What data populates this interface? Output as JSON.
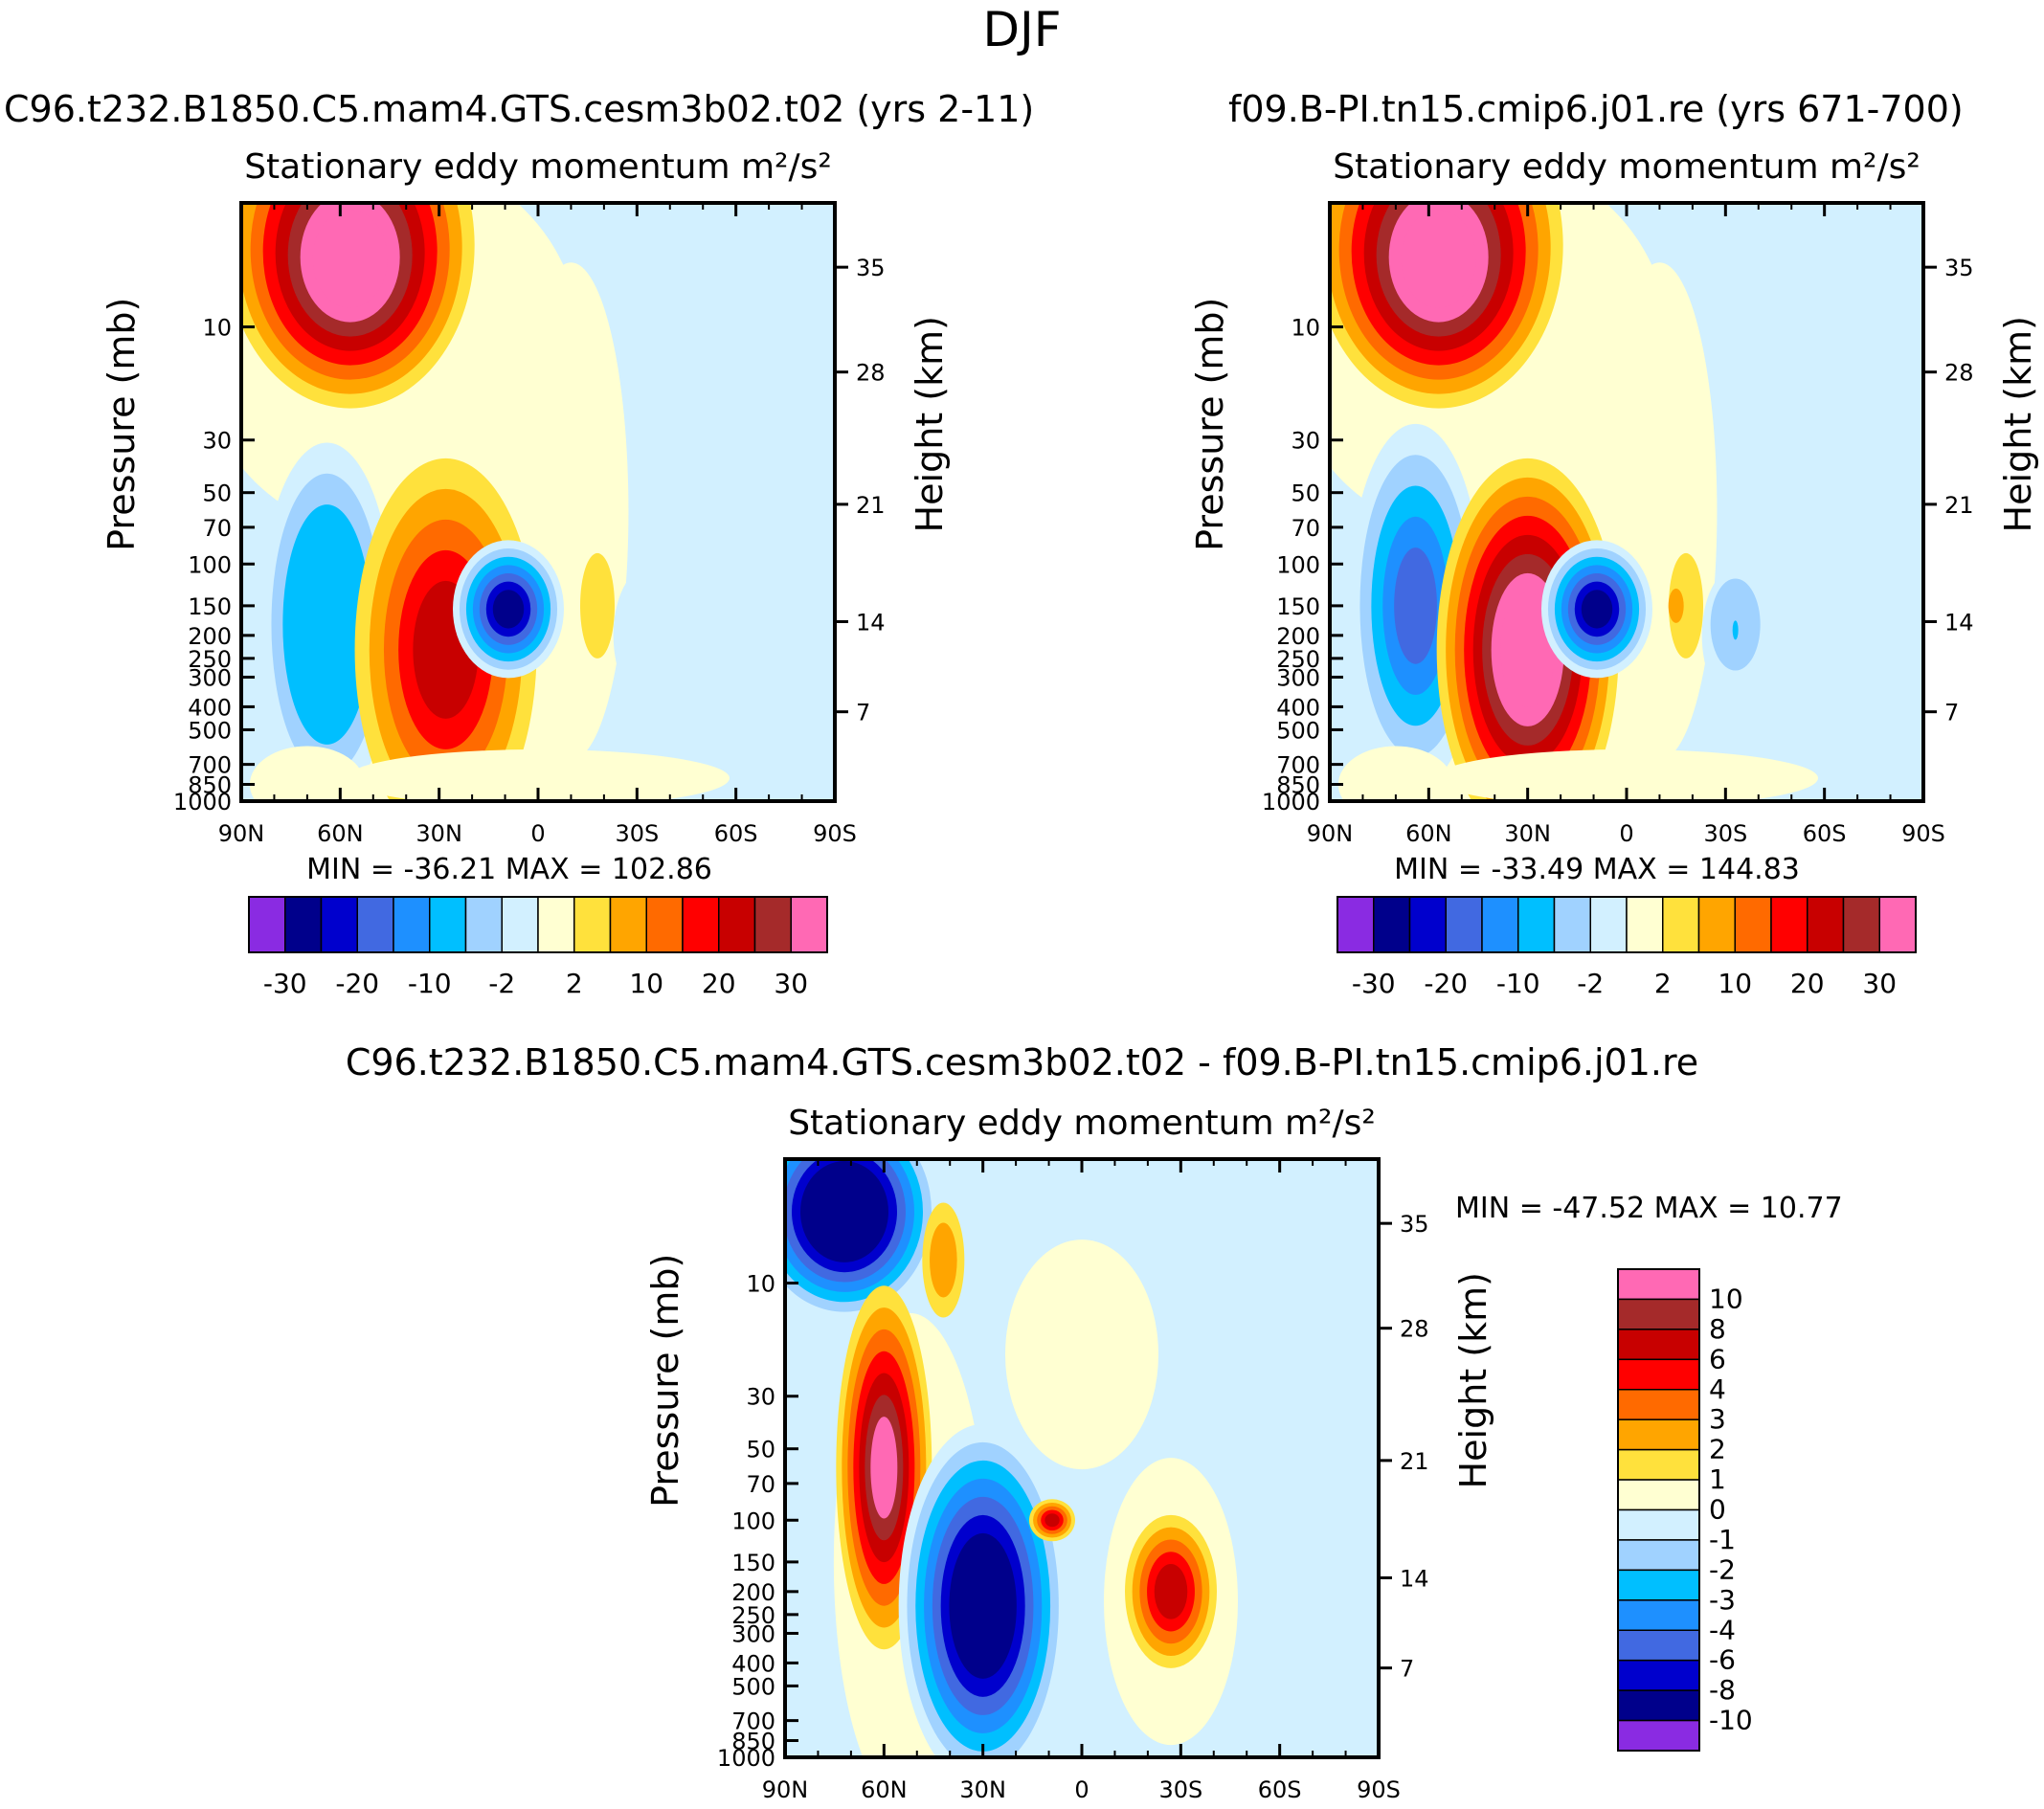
{
  "figure": {
    "title": "DJF",
    "panels": [
      {
        "id": "p1",
        "case_title": "C96.t232.B1850.C5.mam4.GTS.cesm3b02.t02 (yrs 2-11)",
        "plot_title": "Stationary eddy momentum",
        "units": "m²/s²",
        "min_max": "MIN = -36.21 MAX = 102.86",
        "colorbar_labels": [
          "-30",
          "-20",
          "-10",
          "-2",
          "2",
          "10",
          "20",
          "30"
        ]
      },
      {
        "id": "p2",
        "case_title": "f09.B-PI.tn15.cmip6.j01.re (yrs 671-700)",
        "plot_title": "Stationary eddy momentum",
        "units": "m²/s²",
        "min_max": "MIN = -33.49 MAX = 144.83",
        "colorbar_labels": [
          "-30",
          "-20",
          "-10",
          "-2",
          "2",
          "10",
          "20",
          "30"
        ]
      },
      {
        "id": "p3",
        "case_title": "C96.t232.B1850.C5.mam4.GTS.cesm3b02.t02 - f09.B-PI.tn15.cmip6.j01.re",
        "plot_title": "Stationary eddy momentum",
        "units": "m²/s²",
        "min_max": "MIN = -47.52 MAX = 10.77",
        "colorbar_labels": [
          "10",
          "8",
          "6",
          "4",
          "3",
          "2",
          "1",
          "0",
          "-1",
          "-2",
          "-3",
          "-4",
          "-6",
          "-8",
          "-10"
        ]
      }
    ],
    "y_label_left": "Pressure (mb)",
    "y_label_right": "Height (km)",
    "x_ticks": [
      "90N",
      "60N",
      "30N",
      "0",
      "30S",
      "60S",
      "90S"
    ],
    "pressure_ticks": [
      "10",
      "30",
      "50",
      "70",
      "100",
      "150",
      "200",
      "250",
      "300",
      "400",
      "500",
      "700",
      "850",
      "1000"
    ],
    "height_ticks": [
      "35",
      "28",
      "21",
      "14",
      "7"
    ]
  },
  "colors": {
    "mean_palette": [
      "#8a2be2",
      "#00008b",
      "#0000cd",
      "#4169e1",
      "#1e90ff",
      "#00bfff",
      "#a0d2ff",
      "#d2f0ff",
      "#ffffd2",
      "#ffe13c",
      "#ffa500",
      "#ff6a00",
      "#ff0000",
      "#c80000",
      "#a52a2a",
      "#ff69b4"
    ],
    "diff_palette": [
      "#ff69b4",
      "#a52a2a",
      "#c80000",
      "#ff0000",
      "#ff6a00",
      "#ffa500",
      "#ffe13c",
      "#ffffd2",
      "#d2f0ff",
      "#a0d2ff",
      "#00bfff",
      "#1e90ff",
      "#4169e1",
      "#0000cd",
      "#00008b",
      "#8a2be2"
    ]
  },
  "chart_data": [
    {
      "type": "heatmap",
      "title": "Stationary eddy momentum",
      "x_axis": "latitude (90N to 90S)",
      "y_axis": "pressure (mb), log scale",
      "ylim": [
        1000,
        3
      ],
      "contour_levels": [
        -30,
        -25,
        -20,
        -15,
        -10,
        -5,
        -2,
        0,
        2,
        5,
        10,
        15,
        20,
        25,
        30
      ],
      "min": -36.21,
      "max": 102.86,
      "features": [
        {
          "lat": 57,
          "p": 8,
          "value": 102.86
        },
        {
          "lat": 65,
          "p": 150,
          "value": -12
        },
        {
          "lat": 28,
          "p": 210,
          "value": 18
        },
        {
          "lat": 8,
          "p": 150,
          "value": -36.21
        },
        {
          "lat": -18,
          "p": 140,
          "value": 3
        },
        {
          "lat": -33,
          "p": 220,
          "value": -3
        }
      ]
    },
    {
      "type": "heatmap",
      "title": "Stationary eddy momentum",
      "x_axis": "latitude (90N to 90S)",
      "y_axis": "pressure (mb), log scale",
      "ylim": [
        1000,
        3
      ],
      "contour_levels": [
        -30,
        -25,
        -20,
        -15,
        -10,
        -5,
        -2,
        0,
        2,
        5,
        10,
        15,
        20,
        25,
        30
      ],
      "min": -33.49,
      "max": 144.83,
      "features": [
        {
          "lat": 57,
          "p": 8,
          "value": 144.83
        },
        {
          "lat": 62,
          "p": 130,
          "value": -18
        },
        {
          "lat": 30,
          "p": 240,
          "value": 35
        },
        {
          "lat": 10,
          "p": 150,
          "value": -33.49
        },
        {
          "lat": -15,
          "p": 150,
          "value": 4
        },
        {
          "lat": -30,
          "p": 170,
          "value": -12
        }
      ]
    },
    {
      "type": "heatmap",
      "title": "Stationary eddy momentum",
      "x_axis": "latitude (90N to 90S)",
      "y_axis": "pressure (mb), log scale",
      "ylim": [
        1000,
        3
      ],
      "contour_levels": [
        -10,
        -8,
        -6,
        -4,
        -3,
        -2,
        -1,
        0,
        1,
        2,
        3,
        4,
        6,
        8,
        10
      ],
      "min": -47.52,
      "max": 10.77,
      "features": [
        {
          "lat": 72,
          "p": 6,
          "value": -47.52
        },
        {
          "lat": 60,
          "p": 50,
          "value": 10.77
        },
        {
          "lat": 30,
          "p": 220,
          "value": -20
        },
        {
          "lat": 9,
          "p": 100,
          "value": 5
        },
        {
          "lat": -27,
          "p": 190,
          "value": 6
        },
        {
          "lat": 42,
          "p": 5,
          "value": 2
        }
      ]
    }
  ]
}
